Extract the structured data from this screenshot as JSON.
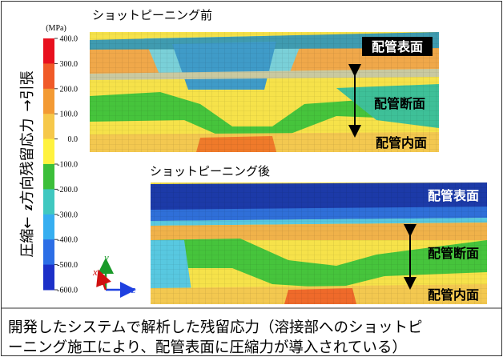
{
  "colorbar": {
    "unit": "(MPa)",
    "labels": [
      "400.0",
      "300.0",
      "200.0",
      "100.0",
      "0.0",
      "-100.0",
      "-200.0",
      "-300.0",
      "-400.0",
      "-500.0",
      "-600.0"
    ],
    "title_parts": [
      "圧縮←",
      "z",
      "方向残留応力",
      "→引張"
    ]
  },
  "before": {
    "title": "ショットピーニング前",
    "labels": [
      "配管表面",
      "配管断面",
      "配管内面"
    ]
  },
  "after": {
    "title": "ショットピーニング後",
    "labels": [
      "配管表面",
      "配管断面",
      "配管内面"
    ]
  },
  "axes": [
    "x",
    "y",
    "z"
  ],
  "caption": [
    "開発したシステムで解析した残留応力（溶接部へのショットピ",
    "ーニング施工により、配管表面に圧縮力が導入されている）"
  ]
}
